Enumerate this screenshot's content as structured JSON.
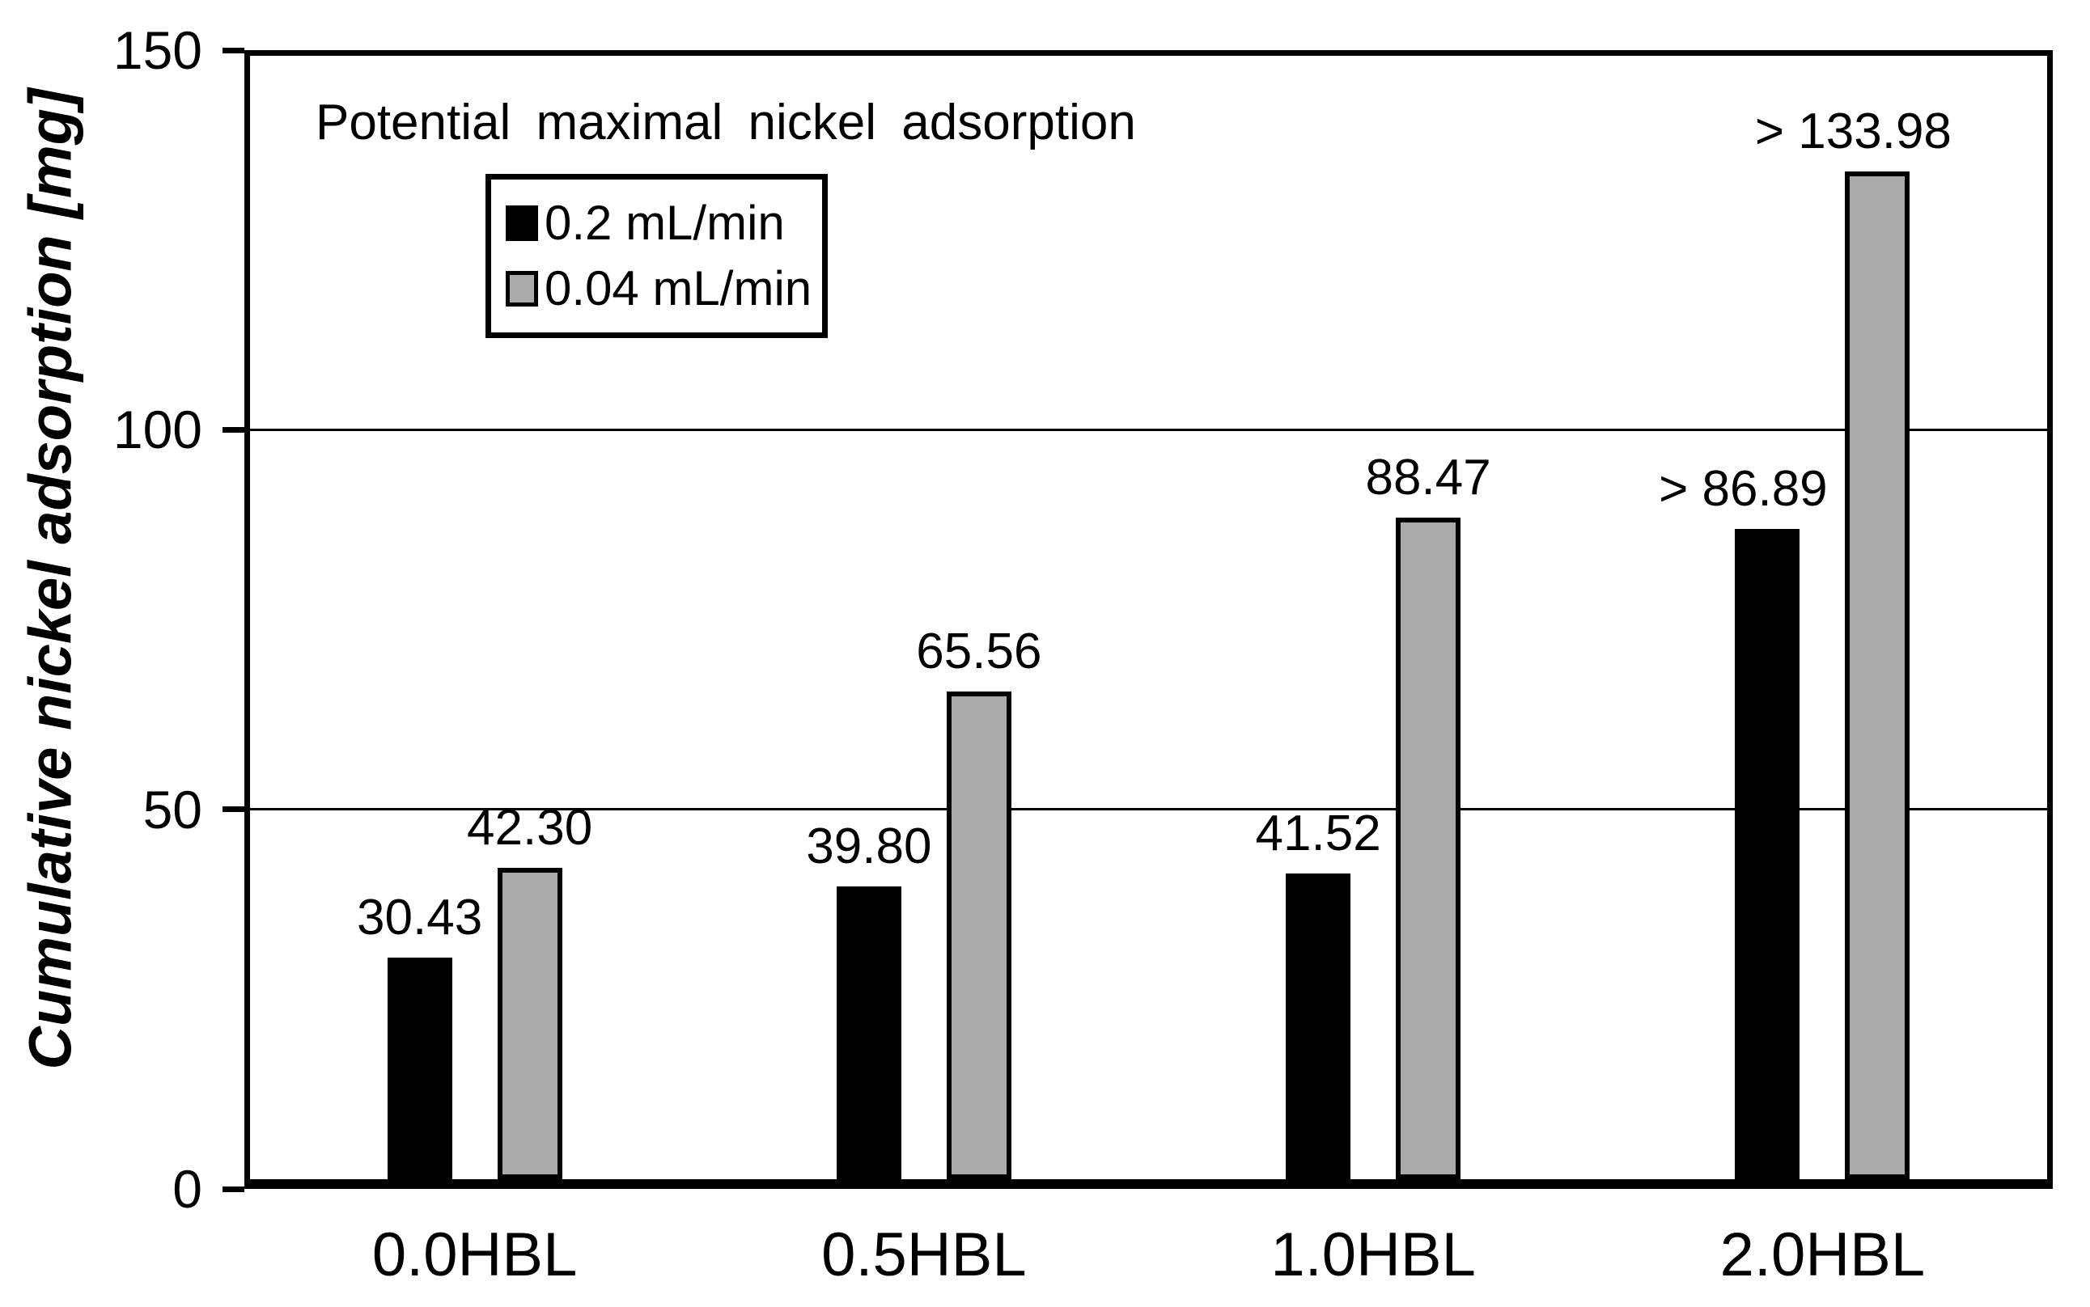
{
  "figure": {
    "background": "#ffffff",
    "plot_border_color": "#000000"
  },
  "chart_data": {
    "type": "bar",
    "title": "Potential maximal nickel adsorption",
    "xlabel": "",
    "ylabel": "Cumulative nickel adsorption [mg]",
    "categories": [
      "0.0HBL",
      "0.5HBL",
      "1.0HBL",
      "2.0HBL"
    ],
    "series": [
      {
        "name": "0.2 mL/min",
        "color": "#000000",
        "values": [
          30.43,
          39.8,
          41.52,
          86.89
        ],
        "labels": [
          "30.43",
          "39.80",
          "41.52",
          "> 86.89"
        ]
      },
      {
        "name": "0.04 mL/min",
        "color": "#aaaaaa",
        "values": [
          42.3,
          65.56,
          88.47,
          133.98
        ],
        "labels": [
          "42.30",
          "65.56",
          "88.47",
          "> 133.98"
        ]
      }
    ],
    "ylim": [
      0,
      150
    ],
    "yticks": [
      0,
      50,
      100,
      150
    ],
    "grid": true,
    "gridline_values": [
      50,
      100
    ],
    "bar_outline_color": "#000000",
    "legend_position": "upper-left-inside"
  }
}
